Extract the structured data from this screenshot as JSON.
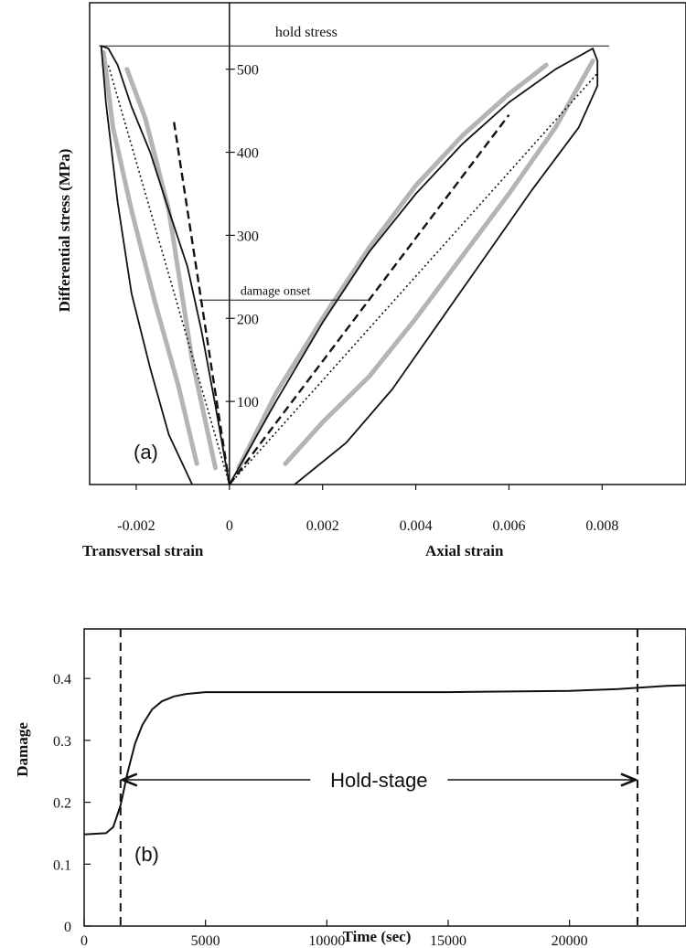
{
  "chart_data": [
    {
      "type": "line",
      "panel_label": "(a)",
      "ylabel": "Differential stress (MPa)",
      "xlabel_left": "Transversal strain",
      "xlabel_right": "Axial strain",
      "xlim": [
        -0.003,
        0.0098
      ],
      "ylim": [
        0,
        580
      ],
      "xticks": [
        {
          "value": -0.002,
          "label": "-0.002"
        },
        {
          "value": 0,
          "label": "0"
        },
        {
          "value": 0.002,
          "label": "0.002"
        },
        {
          "value": 0.004,
          "label": "0.004"
        },
        {
          "value": 0.006,
          "label": "0.006"
        },
        {
          "value": 0.008,
          "label": "0.008"
        }
      ],
      "yticks": [
        {
          "value": 100,
          "label": "100"
        },
        {
          "value": 200,
          "label": "200"
        },
        {
          "value": 300,
          "label": "300"
        },
        {
          "value": 400,
          "label": "400"
        },
        {
          "value": 500,
          "label": "500"
        }
      ],
      "annotations": {
        "hold_stress": {
          "label": "hold stress",
          "y": 528
        },
        "damage_onset": {
          "label": "damage onset",
          "y": 222
        }
      },
      "series": [
        {
          "style": "measured",
          "points": [
            [
              0,
              0
            ],
            [
              -0.0003,
              95
            ],
            [
              -0.0006,
              185
            ],
            [
              -0.0009,
              262
            ],
            [
              -0.0013,
              330
            ],
            [
              -0.0017,
              400
            ],
            [
              -0.0021,
              455
            ],
            [
              -0.0024,
              505
            ],
            [
              -0.0026,
              525
            ],
            [
              -0.00275,
              528
            ],
            [
              -0.00265,
              460
            ],
            [
              -0.0024,
              340
            ],
            [
              -0.0021,
              230
            ],
            [
              -0.0017,
              140
            ],
            [
              -0.0013,
              60
            ],
            [
              -0.0008,
              0
            ]
          ]
        },
        {
          "style": "measured",
          "points": [
            [
              0,
              0
            ],
            [
              0.001,
              100
            ],
            [
              0.002,
              195
            ],
            [
              0.003,
              280
            ],
            [
              0.004,
              350
            ],
            [
              0.005,
              410
            ],
            [
              0.006,
              460
            ],
            [
              0.007,
              500
            ],
            [
              0.0078,
              525
            ],
            [
              0.0079,
              510
            ],
            [
              0.0079,
              480
            ],
            [
              0.0075,
              430
            ],
            [
              0.0065,
              355
            ],
            [
              0.0055,
              275
            ],
            [
              0.0045,
              195
            ],
            [
              0.0035,
              115
            ],
            [
              0.0025,
              50
            ],
            [
              0.0014,
              0
            ]
          ]
        },
        {
          "style": "model",
          "points": [
            [
              -0.0007,
              25
            ],
            [
              -0.0011,
              120
            ],
            [
              -0.0016,
              220
            ],
            [
              -0.0021,
              330
            ],
            [
              -0.0025,
              430
            ],
            [
              -0.0027,
              520
            ]
          ]
        },
        {
          "style": "model",
          "points": [
            [
              0.0012,
              25
            ],
            [
              0.002,
              75
            ],
            [
              0.003,
              130
            ],
            [
              0.004,
              200
            ],
            [
              0.005,
              275
            ],
            [
              0.006,
              350
            ],
            [
              0.007,
              430
            ],
            [
              0.0078,
              510
            ]
          ]
        },
        {
          "style": "model",
          "points": [
            [
              -0.0003,
              20
            ],
            [
              -0.0008,
              150
            ],
            [
              -0.0013,
              330
            ],
            [
              -0.0018,
              440
            ],
            [
              -0.0022,
              500
            ]
          ]
        },
        {
          "style": "model",
          "points": [
            [
              0.0002,
              20
            ],
            [
              0.001,
              110
            ],
            [
              0.002,
              200
            ],
            [
              0.003,
              285
            ],
            [
              0.004,
              360
            ],
            [
              0.005,
              420
            ],
            [
              0.006,
              470
            ],
            [
              0.0068,
              505
            ]
          ]
        },
        {
          "style": "dashed",
          "points": [
            [
              0,
              0
            ],
            [
              -0.0012,
              440
            ]
          ]
        },
        {
          "style": "dashed",
          "points": [
            [
              0,
              0
            ],
            [
              0.006,
              445
            ]
          ]
        },
        {
          "style": "dotted",
          "points": [
            [
              0,
              0
            ],
            [
              -0.0026,
              505
            ]
          ]
        },
        {
          "style": "dotted",
          "points": [
            [
              0,
              0
            ],
            [
              0.0079,
              495
            ]
          ]
        }
      ]
    },
    {
      "type": "line",
      "panel_label": "(b)",
      "ylabel": "Damage",
      "xlabel": "Time (sec)",
      "xlim": [
        0,
        24800
      ],
      "ylim": [
        0,
        0.48
      ],
      "xticks": [
        {
          "value": 0,
          "label": "0"
        },
        {
          "value": 5000,
          "label": "5000"
        },
        {
          "value": 10000,
          "label": "10000"
        },
        {
          "value": 15000,
          "label": "15000"
        },
        {
          "value": 20000,
          "label": "20000"
        }
      ],
      "yticks": [
        {
          "value": 0,
          "label": "0"
        },
        {
          "value": 0.1,
          "label": "0.1"
        },
        {
          "value": 0.2,
          "label": "0.2"
        },
        {
          "value": 0.3,
          "label": "0.3"
        },
        {
          "value": 0.4,
          "label": "0.4"
        }
      ],
      "vlines": [
        1500,
        22800
      ],
      "hold_stage_label": "Hold-stage",
      "series": [
        {
          "x": [
            0,
            900,
            1200,
            1500,
            1800,
            2100,
            2400,
            2800,
            3200,
            3700,
            4200,
            5000,
            7000,
            10000,
            15000,
            20000,
            22000,
            24000,
            24800
          ],
          "y": [
            0.148,
            0.15,
            0.16,
            0.195,
            0.25,
            0.295,
            0.325,
            0.35,
            0.363,
            0.371,
            0.375,
            0.378,
            0.378,
            0.378,
            0.378,
            0.38,
            0.383,
            0.388,
            0.389
          ]
        }
      ]
    }
  ]
}
